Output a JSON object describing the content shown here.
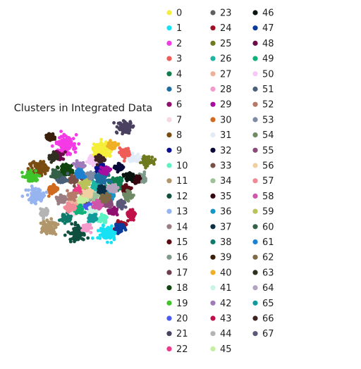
{
  "chart_data": {
    "type": "scatter",
    "title": "Clusters in Integrated Data",
    "xlabel": "",
    "ylabel": "",
    "axes_visible": false,
    "grid": false,
    "legend_position": "right",
    "legend_columns": 3,
    "series": [
      {
        "name": "0",
        "color": "#f5ee3a",
        "centroid": [
          0.62,
          0.76
        ]
      },
      {
        "name": "1",
        "color": "#17e1f5",
        "centroid": [
          0.66,
          0.1
        ]
      },
      {
        "name": "2",
        "color": "#f53ae5",
        "centroid": [
          0.33,
          0.8
        ]
      },
      {
        "name": "3",
        "color": "#ef5d57",
        "centroid": [
          0.8,
          0.74
        ]
      },
      {
        "name": "4",
        "color": "#0f7f4f",
        "centroid": [
          0.73,
          0.5
        ]
      },
      {
        "name": "5",
        "color": "#1e6f9f",
        "centroid": [
          0.6,
          0.53
        ]
      },
      {
        "name": "6",
        "color": "#8f0f6f",
        "centroid": [
          0.7,
          0.28
        ]
      },
      {
        "name": "7",
        "color": "#f7d7e2",
        "centroid": [
          0.39,
          0.27
        ]
      },
      {
        "name": "8",
        "color": "#7a4c12",
        "centroid": [
          0.12,
          0.62
        ]
      },
      {
        "name": "9",
        "color": "#0b0f8f",
        "centroid": [
          0.6,
          0.62
        ]
      },
      {
        "name": "10",
        "color": "#5ef3c5",
        "centroid": [
          0.62,
          0.22
        ]
      },
      {
        "name": "11",
        "color": "#b0966a",
        "centroid": [
          0.2,
          0.15
        ]
      },
      {
        "name": "12",
        "color": "#0f4f3f",
        "centroid": [
          0.42,
          0.1
        ]
      },
      {
        "name": "13",
        "color": "#96b4f0",
        "centroid": [
          0.1,
          0.4
        ]
      },
      {
        "name": "14",
        "color": "#9a7d80",
        "centroid": [
          0.29,
          0.37
        ]
      },
      {
        "name": "15",
        "color": "#5a0a14",
        "centroid": [
          0.8,
          0.45
        ]
      },
      {
        "name": "16",
        "color": "#7f9a8a",
        "centroid": [
          0.93,
          0.55
        ]
      },
      {
        "name": "17",
        "color": "#6f3d50",
        "centroid": [
          0.47,
          0.55
        ]
      },
      {
        "name": "18",
        "color": "#11450f",
        "centroid": [
          0.33,
          0.6
        ]
      },
      {
        "name": "19",
        "color": "#3fc42a",
        "centroid": [
          0.05,
          0.55
        ]
      },
      {
        "name": "20",
        "color": "#4a5af0",
        "centroid": [
          0.51,
          0.32
        ]
      },
      {
        "name": "21",
        "color": "#4a4060",
        "centroid": [
          0.8,
          0.94
        ]
      },
      {
        "name": "22",
        "color": "#ef3a8a",
        "centroid": [
          0.44,
          0.45
        ]
      },
      {
        "name": "23",
        "color": "#5f5f5f",
        "centroid": [
          0.49,
          0.37
        ]
      },
      {
        "name": "24",
        "color": "#a00f2a",
        "centroid": [
          0.77,
          0.17
        ]
      },
      {
        "name": "25",
        "color": "#6f7a1f",
        "centroid": [
          0.97,
          0.67
        ]
      },
      {
        "name": "26",
        "color": "#1fb5a5",
        "centroid": [
          0.56,
          0.47
        ]
      },
      {
        "name": "27",
        "color": "#efb09a",
        "centroid": [
          0.41,
          0.33
        ]
      },
      {
        "name": "28",
        "color": "#f59acd",
        "centroid": [
          0.5,
          0.15
        ]
      },
      {
        "name": "29",
        "color": "#a50fa0",
        "centroid": [
          0.64,
          0.6
        ]
      },
      {
        "name": "30",
        "color": "#d06a1f",
        "centroid": [
          0.23,
          0.45
        ]
      },
      {
        "name": "31",
        "color": "#e2ecf8",
        "centroid": [
          0.86,
          0.69
        ]
      },
      {
        "name": "32",
        "color": "#0a0a3a",
        "centroid": [
          0.75,
          0.62
        ]
      },
      {
        "name": "33",
        "color": "#7a4f46",
        "centroid": [
          0.39,
          0.53
        ]
      },
      {
        "name": "34",
        "color": "#9ec09a",
        "centroid": [
          0.55,
          0.4
        ]
      },
      {
        "name": "35",
        "color": "#35060f",
        "centroid": [
          0.88,
          0.53
        ]
      },
      {
        "name": "36",
        "color": "#1796c8",
        "centroid": [
          0.68,
          0.4
        ]
      },
      {
        "name": "37",
        "color": "#0a2f45",
        "centroid": [
          0.62,
          0.45
        ]
      },
      {
        "name": "38",
        "color": "#0f7a6a",
        "centroid": [
          0.33,
          0.22
        ]
      },
      {
        "name": "39",
        "color": "#3a1f0a",
        "centroid": [
          0.2,
          0.86
        ]
      },
      {
        "name": "40",
        "color": "#efb025",
        "centroid": [
          0.7,
          0.8
        ]
      },
      {
        "name": "41",
        "color": "#c8f5e4",
        "centroid": [
          0.54,
          0.28
        ]
      },
      {
        "name": "42",
        "color": "#a07ab8",
        "centroid": [
          0.44,
          0.64
        ]
      },
      {
        "name": "43",
        "color": "#c0104a",
        "centroid": [
          0.85,
          0.25
        ]
      },
      {
        "name": "44",
        "color": "#b4b4b4",
        "centroid": [
          0.16,
          0.27
        ]
      },
      {
        "name": "45",
        "color": "#c4f0a0",
        "centroid": [
          0.46,
          0.37
        ]
      },
      {
        "name": "46",
        "color": "#0a140f",
        "centroid": [
          0.83,
          0.55
        ]
      },
      {
        "name": "47",
        "color": "#0a3a9a",
        "centroid": [
          0.75,
          0.14
        ]
      },
      {
        "name": "48",
        "color": "#6a0a4a",
        "centroid": [
          0.27,
          0.72
        ]
      },
      {
        "name": "49",
        "color": "#10b07a",
        "centroid": [
          0.44,
          0.29
        ]
      },
      {
        "name": "50",
        "color": "#f5c8f8",
        "centroid": [
          0.53,
          0.68
        ]
      },
      {
        "name": "51",
        "color": "#4a6078",
        "centroid": [
          0.3,
          0.53
        ]
      },
      {
        "name": "52",
        "color": "#b57a6a",
        "centroid": [
          0.38,
          0.4
        ]
      },
      {
        "name": "53",
        "color": "#7f8aa5",
        "centroid": [
          0.52,
          0.56
        ]
      },
      {
        "name": "54",
        "color": "#6f8a64",
        "centroid": [
          0.82,
          0.4
        ]
      },
      {
        "name": "55",
        "color": "#8a4a7a",
        "centroid": [
          0.66,
          0.34
        ]
      },
      {
        "name": "56",
        "color": "#f0d0a0",
        "centroid": [
          0.5,
          0.42
        ]
      },
      {
        "name": "57",
        "color": "#ef8a96",
        "centroid": [
          0.36,
          0.31
        ]
      },
      {
        "name": "58",
        "color": "#cf56a8",
        "centroid": [
          0.58,
          0.33
        ]
      },
      {
        "name": "59",
        "color": "#bac25a",
        "centroid": [
          0.48,
          0.49
        ]
      },
      {
        "name": "60",
        "color": "#356048",
        "centroid": [
          0.25,
          0.57
        ]
      },
      {
        "name": "61",
        "color": "#1a82d0",
        "centroid": [
          0.44,
          0.57
        ]
      },
      {
        "name": "62",
        "color": "#7f6a48",
        "centroid": [
          0.64,
          0.38
        ]
      },
      {
        "name": "63",
        "color": "#2f2f20",
        "centroid": [
          0.23,
          0.7
        ]
      },
      {
        "name": "64",
        "color": "#b4a4c0",
        "centroid": [
          0.7,
          0.46
        ]
      },
      {
        "name": "65",
        "color": "#109a9a",
        "centroid": [
          0.54,
          0.22
        ]
      },
      {
        "name": "66",
        "color": "#3f2222",
        "centroid": [
          0.6,
          0.69
        ]
      },
      {
        "name": "67",
        "color": "#5a5878",
        "centroid": [
          0.76,
          0.33
        ]
      }
    ]
  }
}
